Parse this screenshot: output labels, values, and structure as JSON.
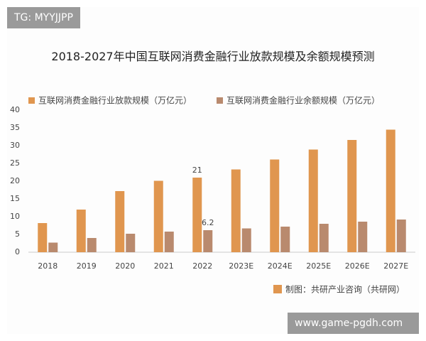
{
  "badges": {
    "top_left": "TG: MYYJJPP",
    "bottom_right": "www.game-pgdh.com"
  },
  "chart_data": {
    "type": "bar",
    "title": "2018-2027年中国互联网消费金融行业放款规模及余额规模预测",
    "source": "制图：共研产业咨询（共研网）",
    "categories": [
      "2018",
      "2019",
      "2020",
      "2021",
      "2022",
      "2023E",
      "2024E",
      "2025E",
      "2026E",
      "2027E"
    ],
    "series": [
      {
        "name": "互联网消费金融行业放款规模（万亿元）",
        "color": "#e0964f",
        "values": [
          8.2,
          12,
          17.2,
          20.1,
          21,
          23.3,
          26.1,
          28.9,
          31.6,
          34.5
        ],
        "value_labels": [
          null,
          null,
          null,
          null,
          "21",
          null,
          null,
          null,
          null,
          null
        ]
      },
      {
        "name": "互联网消费金融行业余额规模（万亿元）",
        "color": "#b98a6e",
        "values": [
          2.7,
          4,
          5.2,
          5.8,
          6.2,
          6.7,
          7.2,
          8,
          8.6,
          9.2
        ],
        "value_labels": [
          null,
          null,
          null,
          null,
          "6.2",
          null,
          null,
          null,
          null,
          null
        ]
      }
    ],
    "ylim": [
      0,
      40
    ],
    "yticks": [
      0,
      5,
      10,
      15,
      20,
      25,
      30,
      35,
      40
    ],
    "grid": false
  }
}
